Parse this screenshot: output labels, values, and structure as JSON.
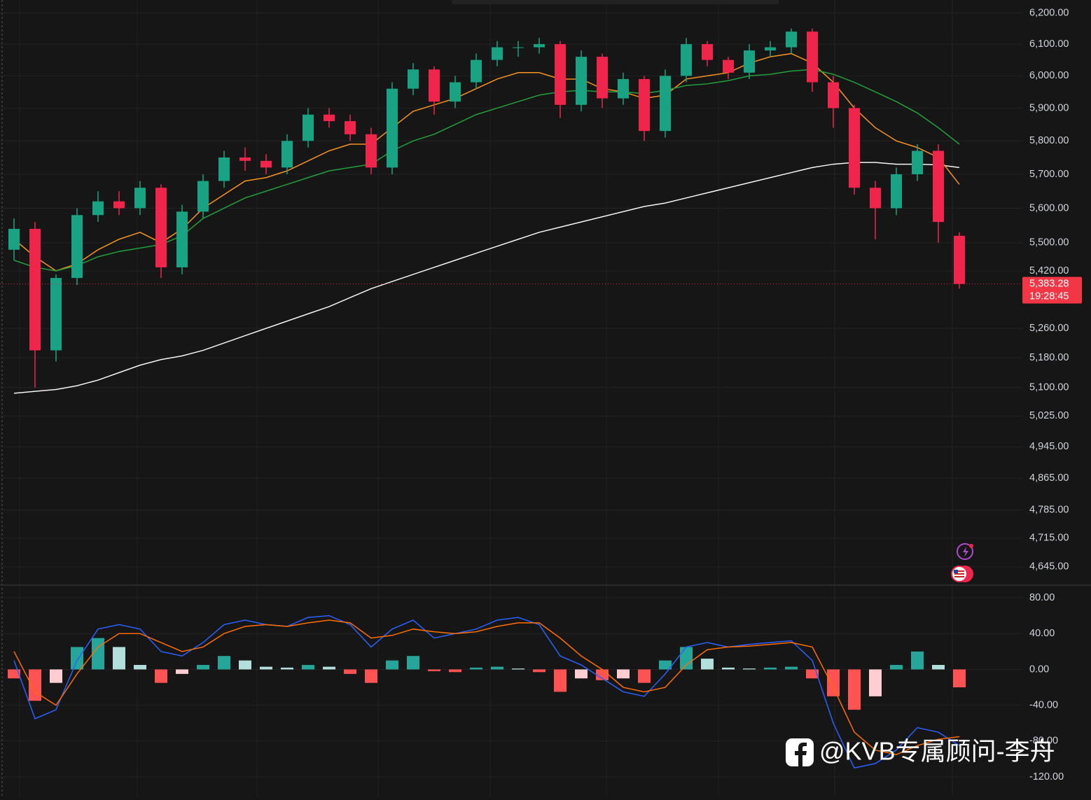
{
  "chart_data": [
    {
      "type": "candlestick",
      "log_scale": true,
      "grid": true,
      "up_color": "#1aa383",
      "down_color": "#f0254b",
      "ylim": [
        4601,
        6242
      ],
      "yticks": [
        {
          "value": 6200,
          "label": "6,200.00"
        },
        {
          "value": 6100,
          "label": "6,100.00"
        },
        {
          "value": 6000,
          "label": "6,000.00"
        },
        {
          "value": 5900,
          "label": "5,900.00"
        },
        {
          "value": 5800,
          "label": "5,800.00"
        },
        {
          "value": 5700,
          "label": "5,700.00"
        },
        {
          "value": 5600,
          "label": "5,600.00"
        },
        {
          "value": 5500,
          "label": "5,500.00"
        },
        {
          "value": 5420,
          "label": "5,420.00"
        },
        {
          "value": 5260,
          "label": "5,260.00"
        },
        {
          "value": 5180,
          "label": "5,180.00"
        },
        {
          "value": 5100,
          "label": "5,100.00"
        },
        {
          "value": 5025,
          "label": "5,025.00"
        },
        {
          "value": 4945,
          "label": "4,945.00"
        },
        {
          "value": 4865,
          "label": "4,865.00"
        },
        {
          "value": 4785,
          "label": "4,785.00"
        },
        {
          "value": 4715,
          "label": "4,715.00"
        },
        {
          "value": 4645,
          "label": "4,645.00"
        }
      ],
      "open": [
        5480,
        5540,
        5200,
        5400,
        5580,
        5620,
        5600,
        5660,
        5430,
        5590,
        5680,
        5750,
        5740,
        5720,
        5800,
        5880,
        5860,
        5820,
        5720,
        5960,
        6020,
        5920,
        5980,
        6050,
        6090,
        6090,
        6100,
        5910,
        6060,
        5930,
        5990,
        5830,
        6000,
        6100,
        6050,
        6010,
        6080,
        6090,
        6140,
        5980,
        5900,
        5660,
        5600,
        5700,
        5770,
        5520
      ],
      "high": [
        5570,
        5560,
        5410,
        5600,
        5650,
        5650,
        5680,
        5670,
        5610,
        5700,
        5770,
        5780,
        5760,
        5820,
        5900,
        5900,
        5880,
        5840,
        5980,
        6040,
        6030,
        6000,
        6070,
        6110,
        6110,
        6120,
        6110,
        6080,
        6070,
        6010,
        6000,
        6020,
        6120,
        6110,
        6060,
        6100,
        6110,
        6150,
        6150,
        6000,
        5910,
        5680,
        5720,
        5790,
        5790,
        5530
      ],
      "low": [
        5450,
        5100,
        5170,
        5380,
        5560,
        5580,
        5580,
        5400,
        5410,
        5570,
        5660,
        5710,
        5700,
        5700,
        5780,
        5840,
        5800,
        5700,
        5700,
        5940,
        5880,
        5900,
        5960,
        6030,
        6060,
        6070,
        5870,
        5890,
        5900,
        5910,
        5800,
        5810,
        5980,
        6030,
        5990,
        5990,
        6060,
        6070,
        5950,
        5840,
        5640,
        5510,
        5580,
        5680,
        5500,
        5370
      ],
      "close": [
        5540,
        5200,
        5400,
        5580,
        5620,
        5600,
        5660,
        5430,
        5590,
        5680,
        5750,
        5740,
        5720,
        5800,
        5880,
        5860,
        5820,
        5720,
        5960,
        6020,
        5920,
        5980,
        6050,
        6090,
        6090,
        6100,
        5910,
        6060,
        5930,
        5990,
        5830,
        6000,
        6100,
        6050,
        6010,
        6080,
        6090,
        6140,
        5980,
        5900,
        5660,
        5600,
        5700,
        5770,
        5560,
        5383.28
      ],
      "series": [
        {
          "color": "#f5f5f5",
          "values": [
            5085,
            5090,
            5095,
            5105,
            5120,
            5140,
            5160,
            5175,
            5185,
            5200,
            5220,
            5240,
            5260,
            5280,
            5300,
            5320,
            5345,
            5370,
            5390,
            5410,
            5430,
            5450,
            5470,
            5490,
            5510,
            5530,
            5545,
            5560,
            5575,
            5590,
            5605,
            5615,
            5630,
            5645,
            5660,
            5675,
            5690,
            5705,
            5720,
            5730,
            5735,
            5735,
            5730,
            5730,
            5728,
            5720
          ]
        },
        {
          "color": "#f7931e",
          "values": [
            5510,
            5460,
            5420,
            5440,
            5480,
            5510,
            5530,
            5500,
            5540,
            5600,
            5640,
            5680,
            5690,
            5710,
            5740,
            5770,
            5790,
            5790,
            5840,
            5890,
            5910,
            5930,
            5960,
            5990,
            6010,
            6010,
            5990,
            5990,
            5960,
            5950,
            5930,
            5940,
            5990,
            6000,
            6010,
            6040,
            6060,
            6070,
            6040,
            5980,
            5900,
            5840,
            5800,
            5780,
            5750,
            5670
          ]
        },
        {
          "color": "#22a03c",
          "values": [
            5450,
            5430,
            5420,
            5435,
            5460,
            5475,
            5485,
            5495,
            5520,
            5570,
            5600,
            5630,
            5650,
            5670,
            5690,
            5710,
            5720,
            5730,
            5770,
            5800,
            5820,
            5850,
            5880,
            5900,
            5920,
            5940,
            5950,
            5955,
            5950,
            5950,
            5945,
            5955,
            5970,
            5975,
            5985,
            6000,
            6005,
            6015,
            6020,
            6005,
            5980,
            5950,
            5920,
            5885,
            5840,
            5790
          ]
        }
      ],
      "last_price": {
        "value": 5383.28,
        "label": "5,383.28"
      },
      "countdown": "19:28:45"
    },
    {
      "type": "macd",
      "grid": true,
      "ylim": [
        -141.8,
        92.5
      ],
      "yticks": [
        {
          "value": 80,
          "label": "80.00"
        },
        {
          "value": 40,
          "label": "40.00"
        },
        {
          "value": 0,
          "label": "0.00"
        },
        {
          "value": -40,
          "label": "-40.00"
        },
        {
          "value": -80,
          "label": "-80.00"
        },
        {
          "value": -120,
          "label": "-120.00"
        }
      ],
      "histogram": [
        -10,
        -35,
        -15,
        25,
        35,
        25,
        5,
        -15,
        -5,
        5,
        15,
        10,
        3,
        2,
        5,
        3,
        -5,
        -15,
        10,
        15,
        -2,
        -3,
        2,
        3,
        1,
        -3,
        -25,
        -10,
        -12,
        -10,
        -15,
        10,
        25,
        12,
        2,
        1,
        2,
        3,
        -10,
        -30,
        -45,
        -30,
        5,
        20,
        5,
        -20
      ],
      "colors": {
        "up_rising": "#26a69a",
        "up_falling": "#b2dfdb",
        "down_falling": "#ff5252",
        "down_rising": "#ffcdd2"
      },
      "series": [
        {
          "color": "#2962ff",
          "values": [
            10,
            -55,
            -45,
            10,
            45,
            50,
            45,
            20,
            15,
            30,
            50,
            55,
            50,
            48,
            58,
            60,
            50,
            25,
            45,
            55,
            35,
            40,
            45,
            55,
            58,
            50,
            15,
            5,
            -10,
            -25,
            -30,
            -5,
            25,
            30,
            25,
            28,
            30,
            32,
            10,
            -60,
            -110,
            -105,
            -90,
            -65,
            -70,
            -85
          ]
        },
        {
          "color": "#ff6d00",
          "values": [
            20,
            -25,
            -40,
            -5,
            25,
            40,
            40,
            30,
            20,
            25,
            40,
            48,
            50,
            48,
            52,
            55,
            52,
            35,
            38,
            45,
            42,
            40,
            42,
            48,
            52,
            52,
            35,
            15,
            0,
            -20,
            -25,
            -20,
            5,
            22,
            25,
            26,
            28,
            30,
            25,
            -20,
            -70,
            -90,
            -95,
            -85,
            -78,
            -75
          ]
        }
      ]
    }
  ],
  "watermark": "@KVB专属顾问-李舟"
}
